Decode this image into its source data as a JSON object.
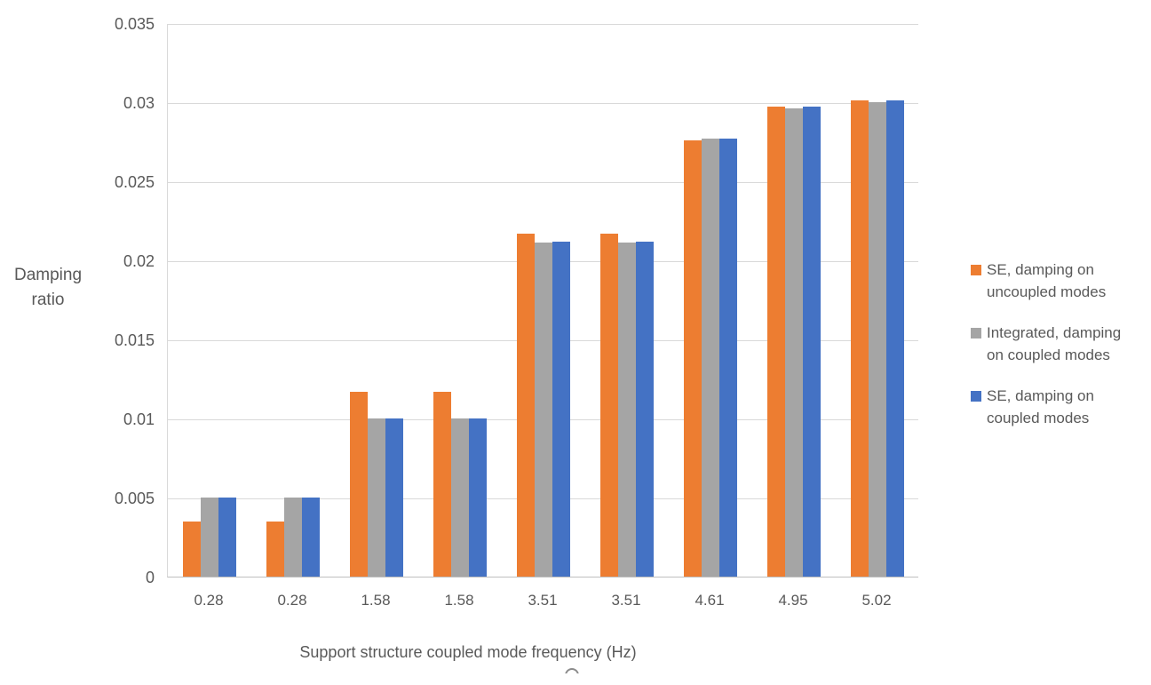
{
  "chart_data": {
    "type": "bar",
    "title": "",
    "xlabel": "Support structure coupled mode frequency (Hz)",
    "ylabel": "Damping ratio",
    "ylabel_lines": [
      "Damping",
      "ratio"
    ],
    "ylim": [
      0,
      0.035
    ],
    "yticks": [
      "0",
      "0.005",
      "0.01",
      "0.015",
      "0.02",
      "0.025",
      "0.03",
      "0.035"
    ],
    "grid": true,
    "legend_position": "right",
    "categories": [
      "0.28",
      "0.28",
      "1.58",
      "1.58",
      "3.51",
      "3.51",
      "4.61",
      "4.95",
      "5.02"
    ],
    "series": [
      {
        "name": "SE, damping on uncoupled modes",
        "color": "#ED7D31",
        "values": [
          0.0035,
          0.0035,
          0.0117,
          0.0117,
          0.0217,
          0.0217,
          0.0276,
          0.0297,
          0.0301
        ]
      },
      {
        "name": "Integrated, damping on coupled modes",
        "color": "#A5A5A5",
        "values": [
          0.005,
          0.005,
          0.01,
          0.01,
          0.0211,
          0.0211,
          0.0277,
          0.0296,
          0.03
        ]
      },
      {
        "name": "SE, damping on coupled modes",
        "color": "#4472C4",
        "values": [
          0.005,
          0.005,
          0.01,
          0.01,
          0.0212,
          0.0212,
          0.0277,
          0.0297,
          0.0301
        ]
      }
    ],
    "colors": {
      "gridline": "#D9D9D9",
      "axis_line": "#BFBFBF",
      "text": "#595959"
    }
  }
}
